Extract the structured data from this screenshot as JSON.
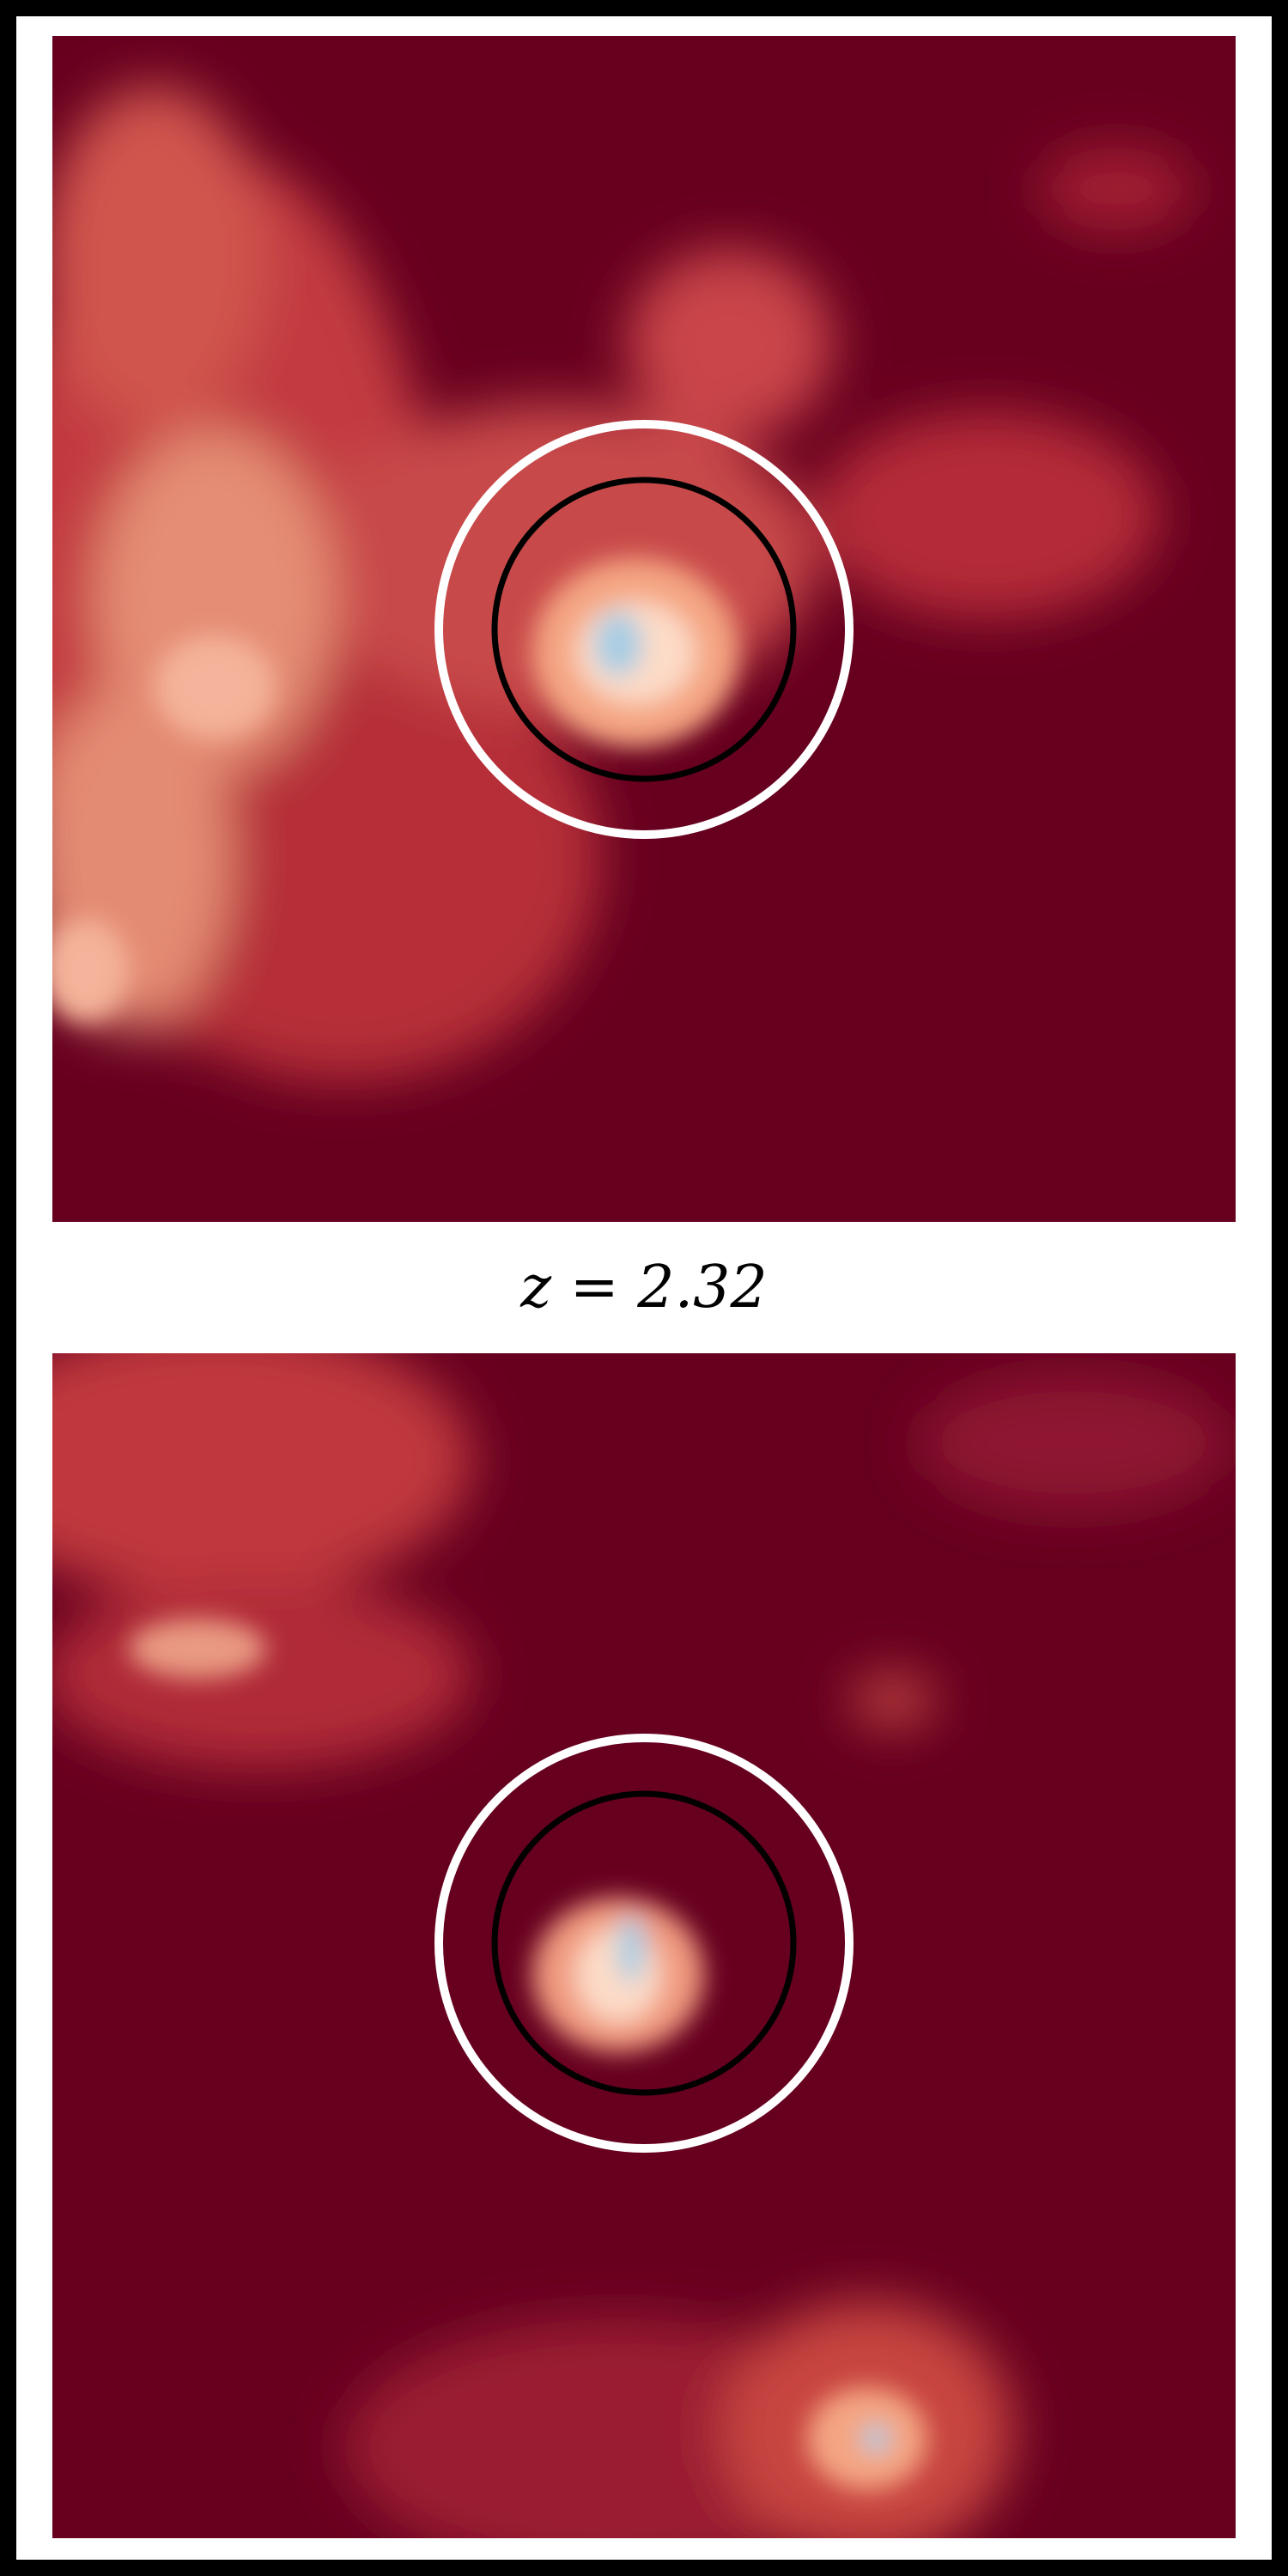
{
  "label": "z = 2.32"
}
